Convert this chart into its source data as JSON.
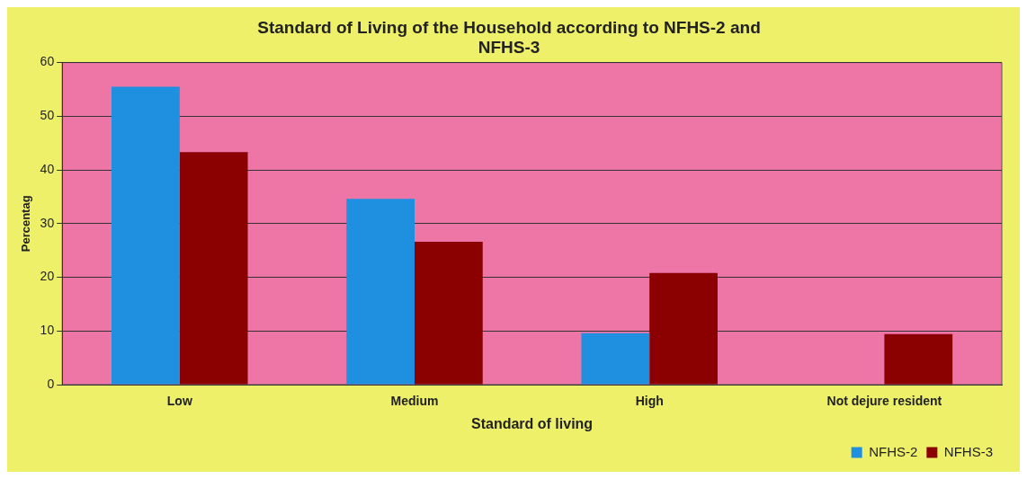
{
  "chart_data": {
    "type": "bar",
    "title": [
      "Standard of Living of the Household according to NFHS-2 and",
      "NFHS-3"
    ],
    "xlabel": "Standard of living",
    "ylabel": "Percentag",
    "categories": [
      "Low",
      "Medium",
      "High",
      "Not dejure resident"
    ],
    "series": [
      {
        "name": "NFHS-2",
        "color": "#1f8fe0",
        "values": [
          55.5,
          34.6,
          9.6,
          null
        ]
      },
      {
        "name": "NFHS-3",
        "color": "#8b0000",
        "values": [
          43.3,
          26.6,
          20.8,
          9.4
        ]
      }
    ],
    "ylim": [
      0,
      60
    ],
    "yticks": [
      0,
      10,
      20,
      30,
      40,
      50,
      60
    ],
    "grid": "y",
    "legend": "bottom right"
  }
}
